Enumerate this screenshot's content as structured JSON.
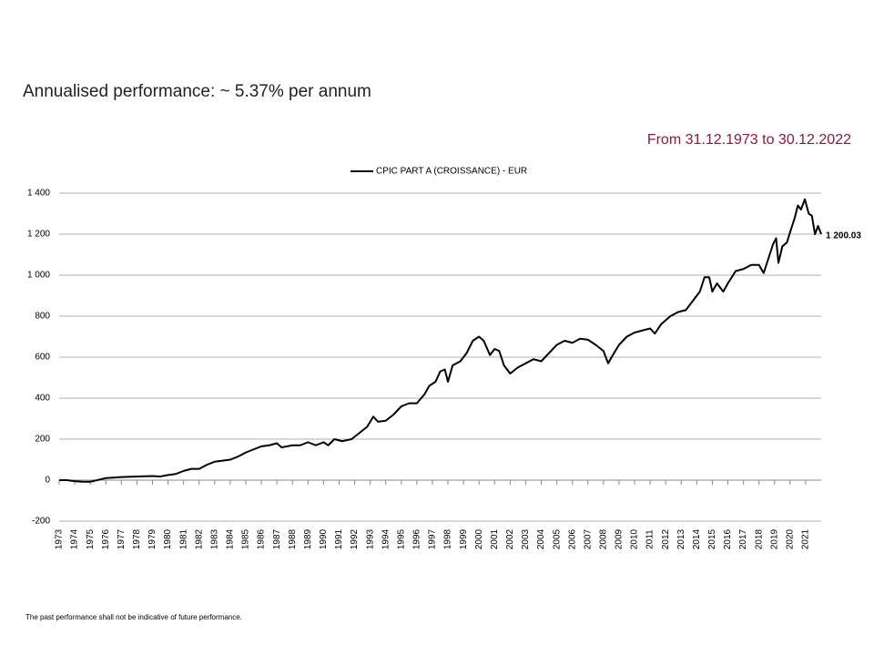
{
  "chart_data": {
    "type": "line",
    "title": "Annualised performance: ~ 5.37% per annum",
    "subtitle": "From 31.12.1973 to 30.12.2022",
    "footnote": "The past performance shall not be indicative of future performance.",
    "x": [
      1973.0,
      1973.5,
      1974.0,
      1974.5,
      1975.0,
      1976,
      1977,
      1978,
      1979,
      1979.5,
      1980,
      1980.5,
      1981,
      1981.5,
      1982,
      1982.5,
      1983,
      1983.5,
      1984,
      1984.5,
      1985,
      1985.5,
      1986,
      1986.5,
      1987,
      1987.3,
      1988,
      1988.5,
      1989,
      1989.5,
      1990,
      1990.3,
      1990.7,
      1991.2,
      1991.8,
      1992.3,
      1992.8,
      1993.2,
      1993.5,
      1994,
      1994.5,
      1995,
      1995.5,
      1996,
      1996.5,
      1996.8,
      1997.2,
      1997.5,
      1997.8,
      1998,
      1998.3,
      1998.8,
      1999.2,
      1999.6,
      2000,
      2000.3,
      2000.7,
      2001,
      2001.3,
      2001.6,
      2002,
      2002.5,
      2003,
      2003.5,
      2004,
      2004.5,
      2005,
      2005.5,
      2006,
      2006.5,
      2007,
      2007.5,
      2008,
      2008.3,
      2008.6,
      2009,
      2009.5,
      2010,
      2010.5,
      2011,
      2011.3,
      2011.7,
      2012.3,
      2012.8,
      2013.3,
      2013.8,
      2014.2,
      2014.5,
      2014.8,
      2015,
      2015.3,
      2015.7,
      2016,
      2016.5,
      2017,
      2017.5,
      2018.0,
      2018.3,
      2018.6,
      2018.9,
      2019.1,
      2019.25,
      2019.5,
      2019.8,
      2020.0,
      2020.3,
      2020.5,
      2020.7,
      2020.95,
      2021.2,
      2021.4,
      2021.6,
      2021.8,
      2022.0
    ],
    "series": [
      {
        "name": "CPIC PART A (CROISSANCE) - EUR",
        "color": "#000000",
        "values": [
          0,
          0,
          -5,
          -8,
          -8,
          10,
          15,
          18,
          20,
          18,
          25,
          30,
          45,
          55,
          55,
          75,
          90,
          95,
          100,
          115,
          135,
          150,
          165,
          170,
          180,
          160,
          170,
          170,
          185,
          170,
          185,
          170,
          200,
          190,
          200,
          230,
          260,
          310,
          285,
          290,
          320,
          360,
          375,
          375,
          420,
          460,
          480,
          530,
          540,
          480,
          560,
          580,
          620,
          680,
          700,
          680,
          610,
          640,
          630,
          560,
          520,
          550,
          570,
          590,
          580,
          620,
          660,
          680,
          670,
          690,
          685,
          660,
          630,
          570,
          610,
          660,
          700,
          720,
          730,
          740,
          715,
          760,
          800,
          820,
          830,
          880,
          920,
          990,
          990,
          920,
          960,
          920,
          960,
          1020,
          1030,
          1050,
          1050,
          1010,
          1080,
          1150,
          1180,
          1060,
          1140,
          1160,
          1210,
          1280,
          1340,
          1320,
          1370,
          1300,
          1290,
          1200,
          1240,
          1200.03
        ]
      }
    ],
    "annotations": [
      {
        "x": 2022.0,
        "value": 1200.03,
        "label": "1 200.03"
      }
    ],
    "xlim": [
      1973,
      2022
    ],
    "xticks": [
      1973,
      1974,
      1975,
      1976,
      1977,
      1978,
      1979,
      1980,
      1981,
      1982,
      1983,
      1984,
      1985,
      1986,
      1987,
      1988,
      1989,
      1990,
      1991,
      1992,
      1993,
      1994,
      1995,
      1996,
      1997,
      1998,
      1999,
      2000,
      2001,
      2002,
      2003,
      2004,
      2005,
      2006,
      2007,
      2008,
      2009,
      2010,
      2011,
      2012,
      2013,
      2014,
      2015,
      2016,
      2017,
      2018,
      2019,
      2020,
      2021
    ],
    "ylim": [
      -200,
      1400
    ],
    "yticks": [
      -200,
      0,
      200,
      400,
      600,
      800,
      {
        "value": 1000,
        "label": "1 000"
      },
      {
        "value": 1200,
        "label": "1 200"
      },
      {
        "value": 1400,
        "label": "1 400"
      }
    ],
    "grid": true,
    "legend": "top"
  }
}
